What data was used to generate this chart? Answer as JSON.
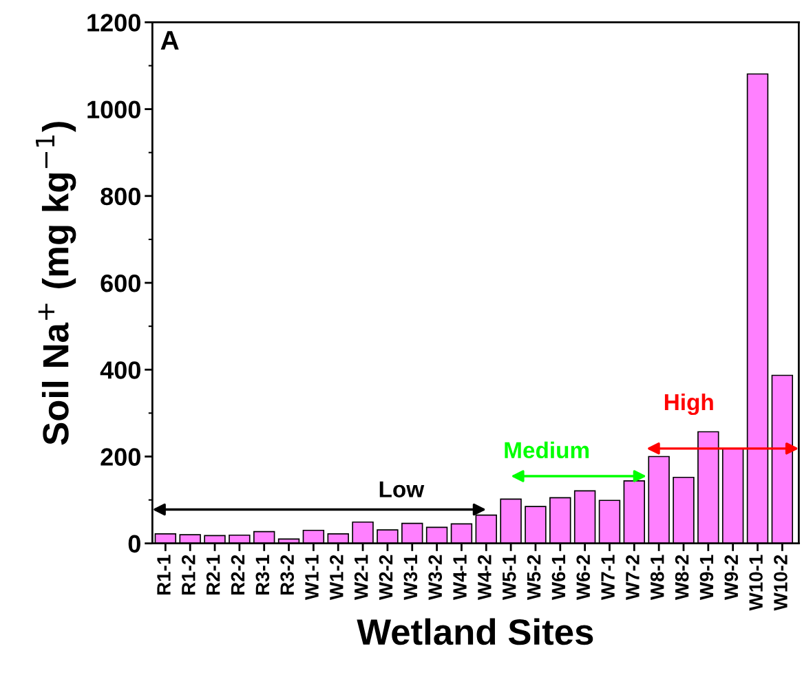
{
  "chart_data": {
    "type": "bar",
    "title": "A",
    "xlabel": "Wetland Sites",
    "ylabel": "Soil Na$^{+}$ (mg kg$^{−1}$)",
    "categories": [
      "R1-1",
      "R1-2",
      "R2-1",
      "R2-2",
      "R3-1",
      "R3-2",
      "W1-1",
      "W1-2",
      "W2-1",
      "W2-2",
      "W3-1",
      "W3-2",
      "W4-1",
      "W4-2",
      "W5-1",
      "W5-2",
      "W6-1",
      "W6-2",
      "W7-1",
      "W7-2",
      "W8-1",
      "W8-2",
      "W9-1",
      "W9-2",
      "W10-1",
      "W10-2"
    ],
    "values": [
      22,
      20,
      18,
      19,
      27,
      10,
      30,
      22,
      49,
      31,
      46,
      37,
      45,
      65,
      102,
      85,
      105,
      121,
      99,
      144,
      200,
      152,
      257,
      218,
      1081,
      387
    ],
    "color": "#ff80ff",
    "ylim": [
      0,
      1200
    ],
    "yticks": [
      0,
      200,
      400,
      600,
      800,
      1000,
      1200
    ],
    "annotations": [
      "Low",
      "Medium",
      "High"
    ],
    "grid": false,
    "legend": false
  }
}
